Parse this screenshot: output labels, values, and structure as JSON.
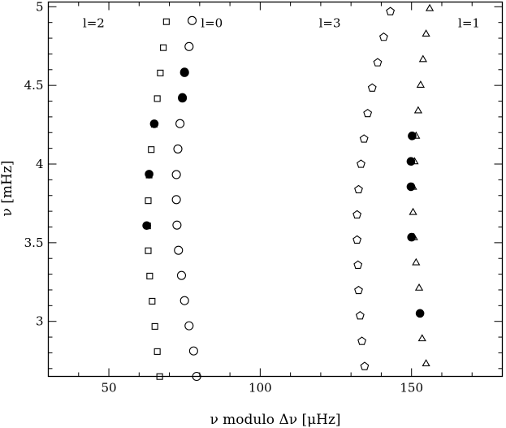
{
  "chart_data": {
    "type": "scatter",
    "title": "",
    "xlabel": "ν modulo Δν [μHz]",
    "ylabel": "ν [mHz]",
    "xlim": [
      30,
      180
    ],
    "ylim": [
      2.65,
      5.03
    ],
    "xticks": [
      {
        "value": 50,
        "label": "50"
      },
      {
        "value": 100,
        "label": "100"
      },
      {
        "value": 150,
        "label": "150"
      }
    ],
    "yticks": [
      {
        "value": 3,
        "label": "3"
      },
      {
        "value": 3.5,
        "label": "3.5"
      },
      {
        "value": 4,
        "label": "4"
      },
      {
        "value": 4.5,
        "label": "4.5"
      },
      {
        "value": 5,
        "label": "5"
      }
    ],
    "grid": false,
    "legend": "none",
    "series": [
      {
        "name": "l=0",
        "marker": "circle-open",
        "x": [
          77.5,
          76.5,
          75.0,
          74.3,
          73.5,
          72.8,
          72.3,
          72.3,
          72.5,
          73.0,
          74.0,
          75.0,
          76.5,
          78.0,
          79.0
        ],
        "y": [
          4.912,
          4.747,
          4.582,
          4.42,
          4.257,
          4.096,
          3.933,
          3.774,
          3.612,
          3.452,
          3.292,
          3.132,
          2.972,
          2.812,
          2.65
        ]
      },
      {
        "name": "l=1",
        "marker": "triangle-open",
        "x": [
          156.0,
          154.8,
          153.8,
          153.0,
          152.2,
          151.5,
          151.0,
          150.5,
          150.5,
          150.8,
          151.5,
          152.5,
          153.5,
          154.8
        ],
        "y": [
          4.992,
          4.83,
          4.668,
          4.505,
          4.342,
          4.181,
          4.018,
          3.856,
          3.696,
          3.536,
          3.376,
          3.215,
          2.893,
          2.734
        ]
      },
      {
        "name": "l=2",
        "marker": "square-open",
        "x": [
          69.0,
          68.0,
          67.0,
          66.0,
          65.0,
          64.0,
          63.3,
          63.0,
          62.8,
          63.0,
          63.5,
          64.3,
          65.2,
          66.0,
          66.8
        ],
        "y": [
          4.905,
          4.74,
          4.579,
          4.416,
          4.253,
          4.092,
          3.93,
          3.767,
          3.607,
          3.449,
          3.288,
          3.128,
          2.968,
          2.808,
          2.649
        ]
      },
      {
        "name": "l=3",
        "marker": "pentagon-open",
        "x": [
          143.0,
          140.8,
          138.8,
          137.0,
          135.5,
          134.3,
          133.3,
          132.5,
          132.0,
          132.0,
          132.3,
          132.5,
          133.0,
          133.6,
          134.5
        ],
        "y": [
          4.97,
          4.807,
          4.645,
          4.484,
          4.322,
          4.16,
          4.0,
          3.838,
          3.678,
          3.518,
          3.358,
          3.197,
          3.036,
          2.874,
          2.714
        ]
      },
      {
        "name": "",
        "marker": "filled",
        "x": [
          75.0,
          74.3,
          65.0,
          63.3,
          62.5,
          150.2,
          149.8,
          149.8,
          150.0,
          152.8
        ],
        "y": [
          4.586,
          4.424,
          4.256,
          3.936,
          3.609,
          4.179,
          4.017,
          3.856,
          3.535,
          3.051
        ]
      }
    ],
    "annotations": [
      {
        "text": "l=2",
        "x": 45,
        "y": 4.896
      },
      {
        "text": "l=0",
        "x": 84,
        "y": 4.896
      },
      {
        "text": "l=3",
        "x": 123,
        "y": 4.896
      },
      {
        "text": "l=1",
        "x": 169,
        "y": 4.896
      }
    ]
  }
}
